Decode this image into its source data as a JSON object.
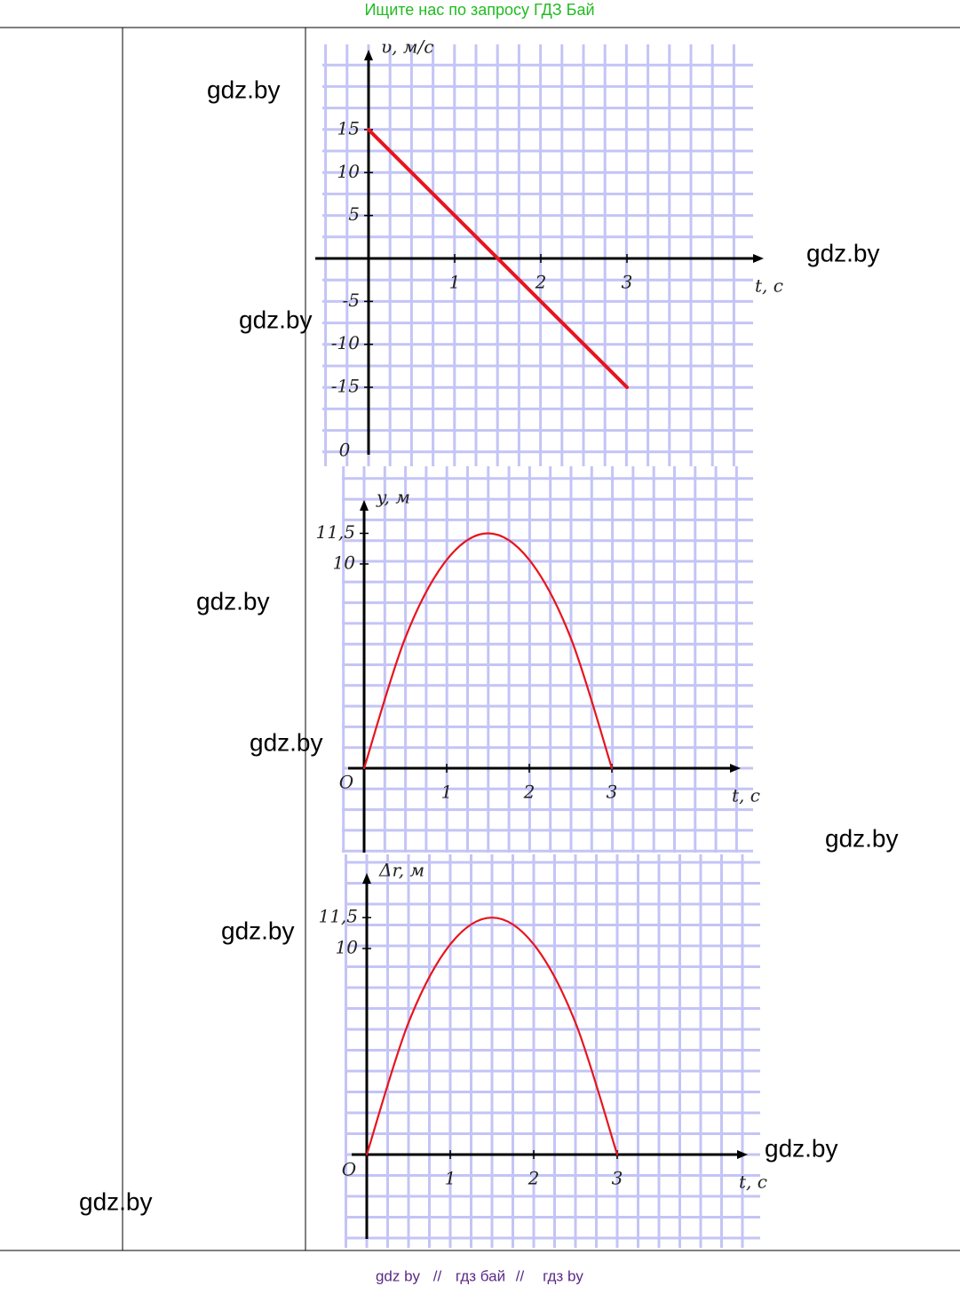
{
  "header": {
    "title": "Ищите нас по запросу ГДЗ Бай"
  },
  "watermarks": [
    "gdz.by",
    "gdz.by",
    "gdz.by",
    "gdz.by",
    "gdz.by",
    "gdz.by",
    "gdz.by",
    "gdz.by",
    "gdz.by"
  ],
  "graphs": [
    {
      "y_label": "υ, м/с",
      "x_label": "t, c",
      "origin_label": "0",
      "yticks": [
        15,
        10,
        5,
        -5,
        -10,
        -15
      ],
      "xticks": [
        1,
        2,
        3
      ],
      "t": [
        0,
        3
      ],
      "values": [
        15,
        -15
      ]
    },
    {
      "y_label": "y, м",
      "x_label": "t, c",
      "origin_label": "O",
      "yticks": [
        {
          "value": 11.5,
          "label": "11,5"
        },
        10
      ],
      "xticks": [
        1,
        2,
        3
      ],
      "t": [
        0,
        0.5,
        1,
        1.5,
        2,
        2.5,
        3
      ],
      "values": [
        0,
        6.4,
        10.2,
        11.5,
        10.2,
        6.4,
        0
      ]
    },
    {
      "y_label": "Δr, м",
      "x_label": "t, c",
      "origin_label": "O",
      "yticks": [
        {
          "value": 11.5,
          "label": "11,5"
        },
        10
      ],
      "xticks": [
        1,
        2,
        3
      ],
      "t": [
        0,
        0.5,
        1,
        1.5,
        2,
        2.5,
        3
      ],
      "values": [
        0,
        6.4,
        10.2,
        11.5,
        10.2,
        6.4,
        0
      ]
    }
  ],
  "footer": {
    "links": [
      "gdz by",
      "гдз бай",
      "гдз by"
    ],
    "separator": "//"
  }
}
